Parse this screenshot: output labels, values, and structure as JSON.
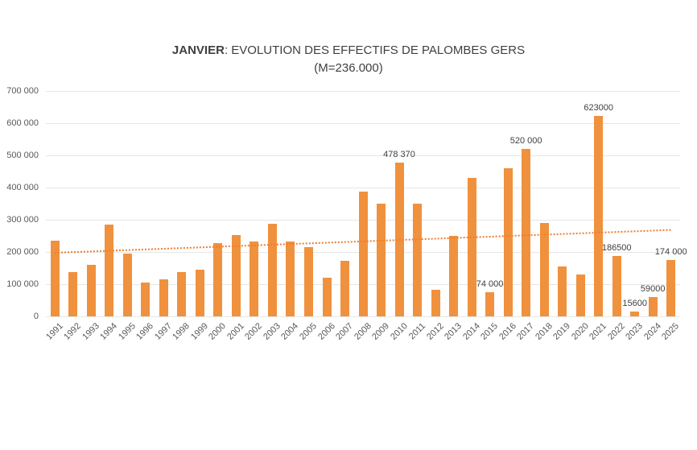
{
  "title": {
    "bold": "JANVIER",
    "rest": ": EVOLUTION DES EFFECTIFS DE PALOMBES GERS",
    "subtitle": "(M=236.000)"
  },
  "colors": {
    "bar": "#F0913E",
    "trendline": "#ED7D31",
    "gridline": "#E6E6E6",
    "axis_text": "#595959",
    "data_label_text": "#404040",
    "title_text": "#404040",
    "background": "#FFFFFF"
  },
  "chart_data": {
    "type": "bar",
    "title": "JANVIER: EVOLUTION DES EFFECTIFS DE PALOMBES GERS",
    "subtitle": "(M=236.000)",
    "categories": [
      "1991",
      "1992",
      "1993",
      "1994",
      "1995",
      "1996",
      "1997",
      "1998",
      "1999",
      "2000",
      "2001",
      "2002",
      "2003",
      "2004",
      "2005",
      "2006",
      "2007",
      "2008",
      "2009",
      "2010",
      "2011",
      "2012",
      "2013",
      "2014",
      "2015",
      "2016",
      "2017",
      "2018",
      "2019",
      "2020",
      "2021",
      "2022",
      "2023",
      "2024",
      "2025"
    ],
    "values": [
      235000,
      138000,
      160000,
      285000,
      196000,
      105000,
      114000,
      137000,
      144000,
      228000,
      253000,
      233000,
      287000,
      232000,
      215000,
      120000,
      173000,
      388000,
      350000,
      478370,
      349000,
      83000,
      251000,
      429000,
      74000,
      459000,
      520000,
      290000,
      155000,
      131000,
      623000,
      186500,
      15600,
      59000,
      174000
    ],
    "bar_labels": [
      null,
      null,
      null,
      null,
      null,
      null,
      null,
      null,
      null,
      null,
      null,
      null,
      null,
      null,
      null,
      null,
      null,
      null,
      null,
      "478 370",
      null,
      null,
      null,
      null,
      "74 000",
      null,
      "520 000",
      null,
      null,
      null,
      "623000",
      "186500",
      "15600",
      "59000",
      "174 000"
    ],
    "xlabel": "",
    "ylabel": "",
    "ylim": [
      0,
      700000
    ],
    "ytick_values": [
      0,
      100000,
      200000,
      300000,
      400000,
      500000,
      600000,
      700000
    ],
    "ytick_labels": [
      "0",
      "100 000",
      "200 000",
      "300 000",
      "400 000",
      "500 000",
      "600 000",
      "700 000"
    ],
    "grid": true,
    "legend": false,
    "trendline": {
      "type": "linear",
      "style": "dotted",
      "start_value": 199000,
      "end_value": 270000
    }
  }
}
